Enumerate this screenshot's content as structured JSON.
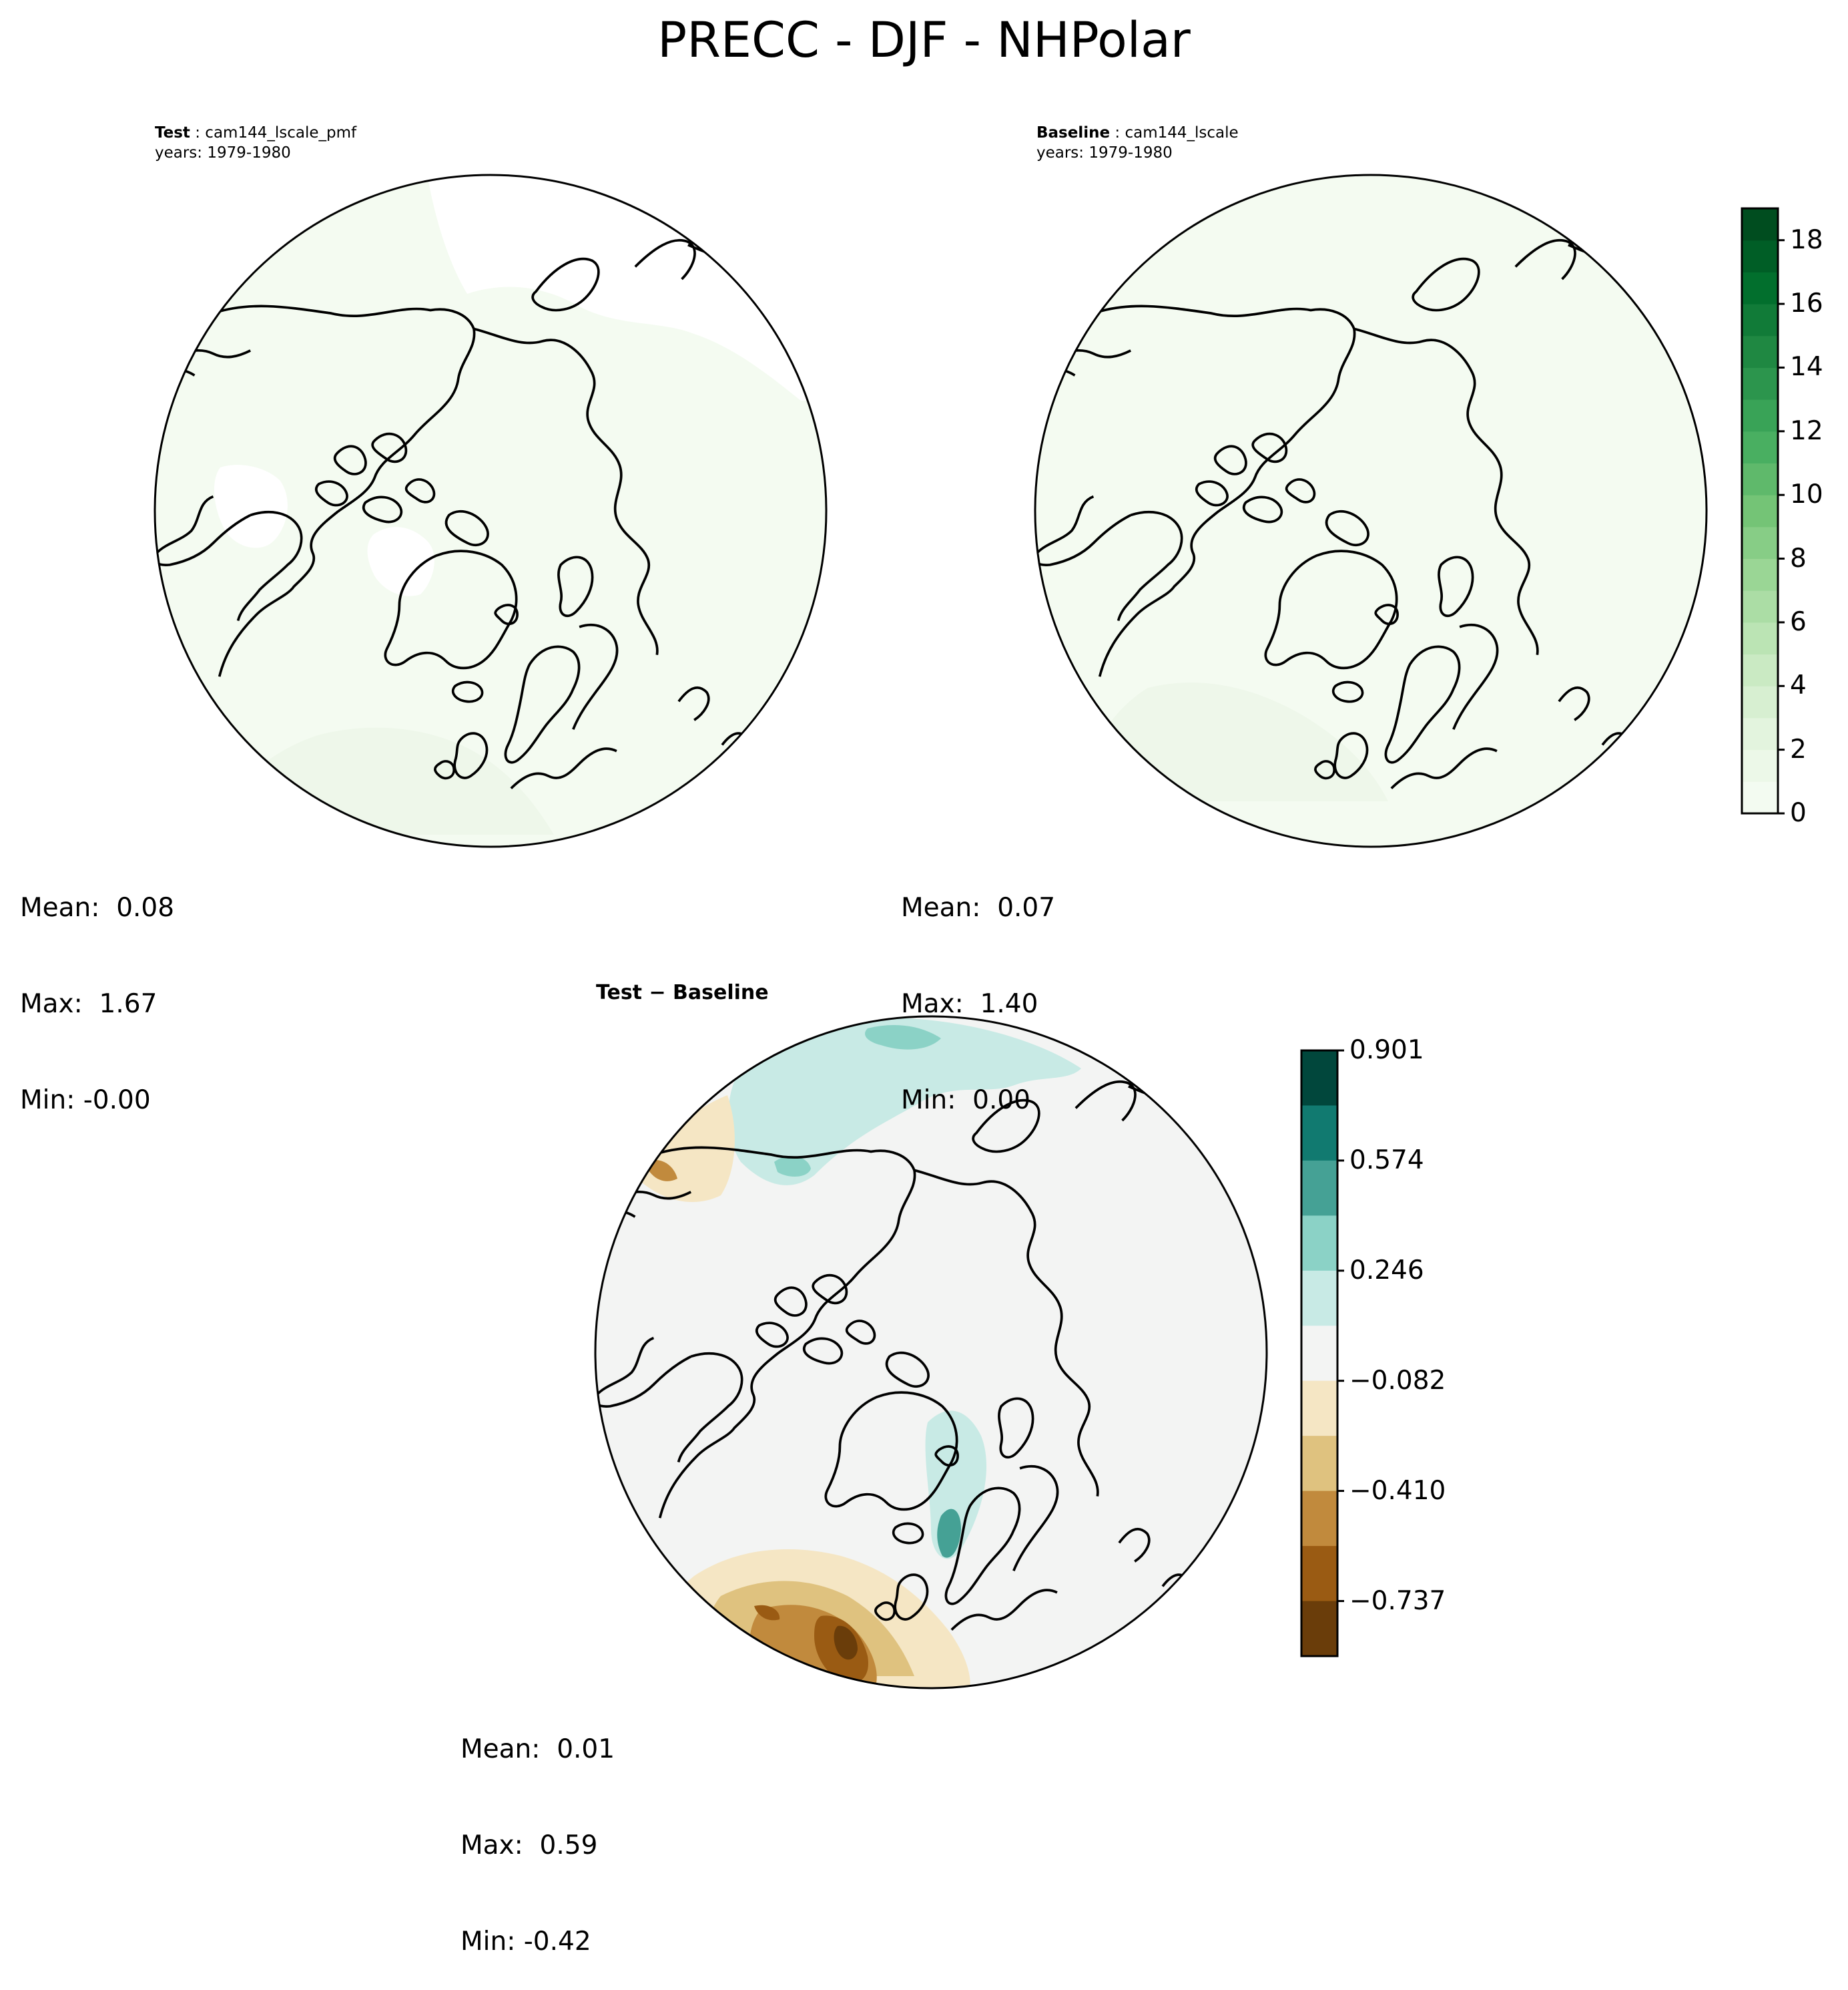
{
  "figure": {
    "title": "PRECC - DJF - NHPolar"
  },
  "panels": {
    "test": {
      "title_bold": "Test",
      "title_rest": " : cam144_lscale_pmf",
      "years": "years: 1979-1980",
      "stats": {
        "mean": "Mean:  0.08",
        "max": "Max:  1.67",
        "min": "Min: -0.00"
      }
    },
    "baseline": {
      "title_bold": "Baseline",
      "title_rest": " : cam144_lscale",
      "years": "years: 1979-1980",
      "stats": {
        "mean": "Mean:  0.07",
        "max": "Max:  1.40",
        "min": "Min:  0.00"
      }
    },
    "diff": {
      "title": "Test − Baseline",
      "stats": {
        "mean": "Mean:  0.01",
        "max": "Max:  0.59",
        "min": "Min: -0.42"
      }
    }
  },
  "colorbars": {
    "main": {
      "ticks": [
        "0",
        "2",
        "4",
        "6",
        "8",
        "10",
        "12",
        "14",
        "16",
        "18"
      ],
      "range": [
        0,
        19
      ],
      "colors": [
        "#f7fcf5",
        "#e5f5e0",
        "#c7e9c0",
        "#a1d99b",
        "#74c476",
        "#41ab5d",
        "#238b45",
        "#006d2c",
        "#00441b"
      ]
    },
    "diff": {
      "ticks": [
        "0.901",
        "0.574",
        "0.246",
        "−0.082",
        "−0.410",
        "−0.737"
      ],
      "colors_top_to_bottom": [
        "#01473c",
        "#117a70",
        "#45a195",
        "#8bd2c6",
        "#c8eae5",
        "#f3f4f3",
        "#f5e6c4",
        "#dfc27f",
        "#c18a3d",
        "#9a5b13",
        "#6a3d0a"
      ]
    }
  },
  "chart_data": {
    "type": "heatmap",
    "title": "PRECC - DJF - NHPolar",
    "maps": [
      {
        "name": "Test",
        "case": "cam144_lscale_pmf",
        "years": "1979-1980",
        "mean": 0.08,
        "max": 1.67,
        "min": -0.0
      },
      {
        "name": "Baseline",
        "case": "cam144_lscale",
        "years": "1979-1980",
        "mean": 0.07,
        "max": 1.4,
        "min": 0.0
      },
      {
        "name": "Test − Baseline",
        "mean": 0.01,
        "max": 0.59,
        "min": -0.42
      }
    ],
    "colorbar_main_ticks": [
      0,
      2,
      4,
      6,
      8,
      10,
      12,
      14,
      16,
      18
    ],
    "colorbar_diff_ticks": [
      0.901,
      0.574,
      0.246,
      -0.082,
      -0.41,
      -0.737
    ]
  }
}
